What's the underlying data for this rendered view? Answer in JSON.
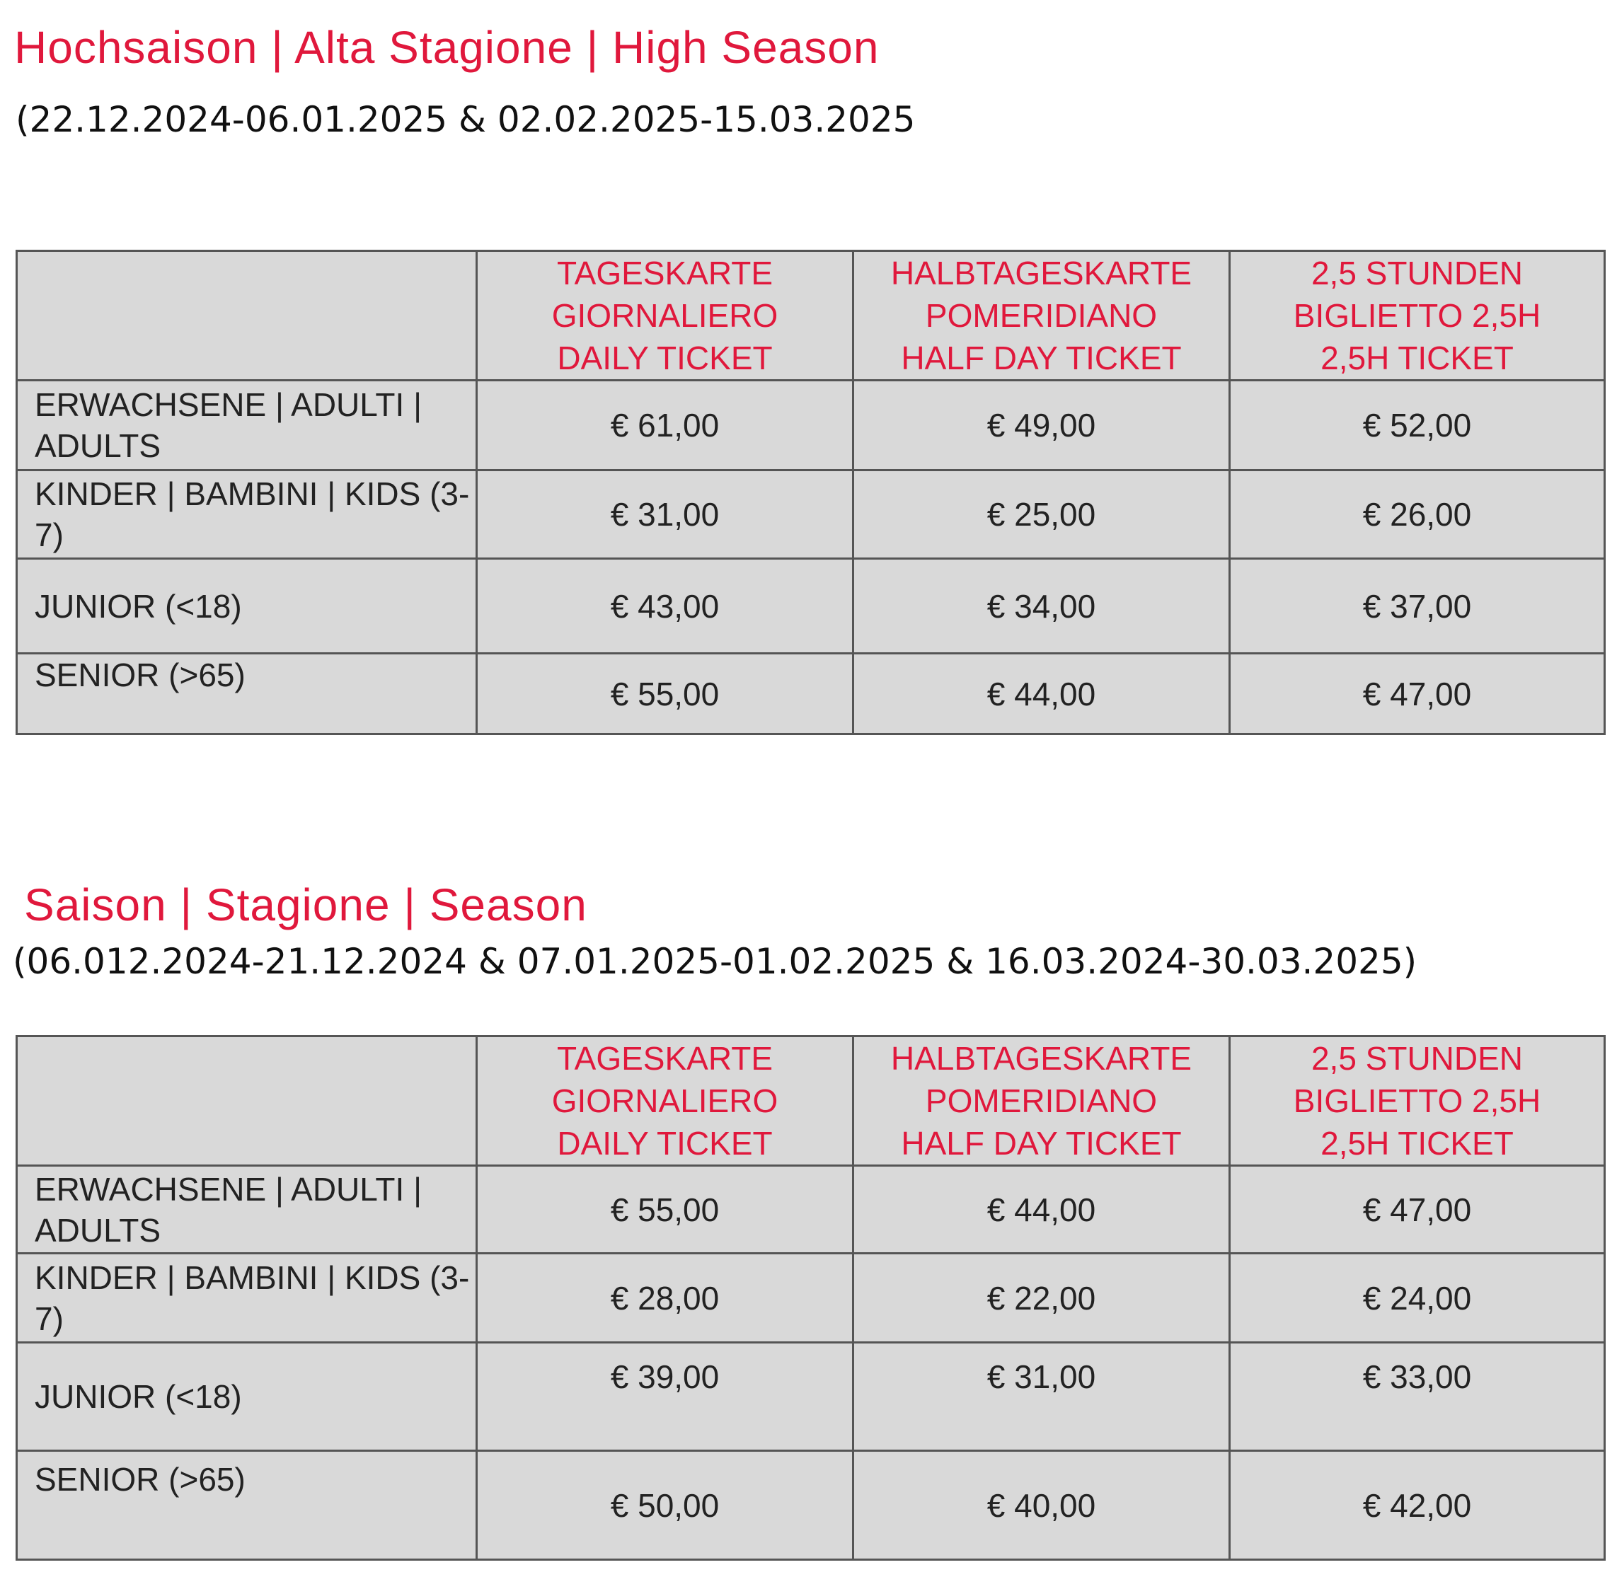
{
  "colors": {
    "accent": "#e0183c",
    "cell_bg": "#d9d9d9"
  },
  "sections": [
    {
      "title": "Hochsaison | Alta Stagione | High Season",
      "dates": "(22.12.2024-06.01.2025 & 02.02.2025-15.03.2025",
      "headers": [
        "TAGESKARTE\nGIORNALIERO\nDAILY TICKET",
        "HALBTAGESKARTE\nPOMERIDIANO\nHALF DAY TICKET",
        "2,5 STUNDEN\nBIGLIETTO 2,5H\n2,5H TICKET"
      ],
      "rows": [
        {
          "label": "ERWACHSENE | ADULTI | ADULTS",
          "prices": [
            "€ 61,00",
            "€ 49,00",
            "€ 52,00"
          ]
        },
        {
          "label": "KINDER | BAMBINI | KIDS (3-7)",
          "prices": [
            "€ 31,00",
            "€ 25,00",
            "€ 26,00"
          ]
        },
        {
          "label": "JUNIOR (<18)",
          "prices": [
            "€ 43,00",
            "€ 34,00",
            "€ 37,00"
          ]
        },
        {
          "label": "SENIOR (>65)",
          "prices": [
            "€ 55,00",
            "€ 44,00",
            "€ 47,00"
          ]
        }
      ]
    },
    {
      "title": "Saison | Stagione | Season",
      "dates": "(06.012.2024-21.12.2024 & 07.01.2025-01.02.2025 & 16.03.2024-30.03.2025)",
      "headers": [
        "TAGESKARTE\nGIORNALIERO\nDAILY TICKET",
        "HALBTAGESKARTE\nPOMERIDIANO\nHALF DAY TICKET",
        "2,5 STUNDEN\nBIGLIETTO 2,5H\n2,5H TICKET"
      ],
      "rows": [
        {
          "label": "ERWACHSENE | ADULTI | ADULTS",
          "prices": [
            "€ 55,00",
            "€ 44,00",
            "€ 47,00"
          ]
        },
        {
          "label": "KINDER | BAMBINI | KIDS (3-7)",
          "prices": [
            "€ 28,00",
            "€ 22,00",
            "€ 24,00"
          ]
        },
        {
          "label": "JUNIOR (<18)",
          "prices": [
            "€ 39,00",
            "€ 31,00",
            "€ 33,00"
          ]
        },
        {
          "label": "SENIOR (>65)",
          "prices": [
            "€ 50,00",
            "€ 40,00",
            "€ 42,00"
          ]
        }
      ]
    }
  ]
}
